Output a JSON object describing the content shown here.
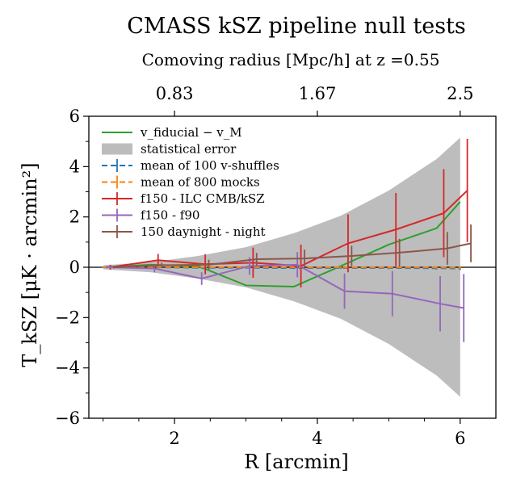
{
  "chart_data": {
    "type": "line",
    "title": "CMASS kSZ pipeline null tests",
    "top_axis": {
      "label": "Comoving radius [Mpc/h] at z =0.55",
      "ticks": [
        {
          "r": 2,
          "label": "0.83"
        },
        {
          "r": 4,
          "label": "1.67"
        },
        {
          "r": 6,
          "label": "2.5"
        }
      ]
    },
    "xlabel": "R [arcmin]",
    "ylabel": "T_kSZ [μK · arcmin²]",
    "xlim": [
      0.8,
      6.5
    ],
    "ylim": [
      -6,
      6
    ],
    "xticks": [
      2,
      4,
      6
    ],
    "yticks": [
      -6,
      -4,
      -2,
      0,
      2,
      4,
      6
    ],
    "ytick_labels": [
      "−6",
      "−4",
      "−2",
      "0",
      "2",
      "4",
      "6"
    ],
    "xtick_labels": [
      "2",
      "4",
      "6"
    ],
    "zero_line": true,
    "grid": false,
    "legend_position": "top-left",
    "statistical_error": {
      "name": "statistical error",
      "color": "#bdbdbd",
      "x": [
        1.0,
        1.67,
        2.33,
        3.0,
        3.67,
        4.33,
        5.0,
        5.67,
        6.0
      ],
      "upper": [
        0.08,
        0.2,
        0.45,
        0.8,
        1.35,
        2.05,
        3.05,
        4.3,
        5.15
      ],
      "lower": [
        -0.08,
        -0.2,
        -0.45,
        -0.8,
        -1.35,
        -2.05,
        -3.05,
        -4.3,
        -5.15
      ]
    },
    "series": [
      {
        "name": "v_fiducial − v_M",
        "color": "#2ca02c",
        "style": "solid",
        "errorbars": false,
        "x": [
          1.0,
          1.67,
          2.33,
          3.0,
          3.67,
          4.33,
          5.0,
          5.67,
          6.0
        ],
        "y": [
          0.0,
          0.1,
          0.05,
          -0.72,
          -0.77,
          0.05,
          0.9,
          1.55,
          2.6
        ]
      },
      {
        "name": "mean of 100 v-shuffles",
        "color": "#1f77b4",
        "style": "dashed",
        "errorbars": true,
        "x": [
          1.0,
          1.67,
          2.33,
          3.0,
          3.67,
          4.33,
          5.0,
          5.67,
          6.0
        ],
        "y": [
          0.0,
          0.0,
          -0.02,
          -0.02,
          -0.03,
          -0.03,
          -0.03,
          -0.04,
          -0.05
        ],
        "err": [
          0.02,
          0.02,
          0.03,
          0.03,
          0.04,
          0.04,
          0.05,
          0.05,
          0.06
        ]
      },
      {
        "name": "mean of 800 mocks",
        "color": "#ff7f0e",
        "style": "dashed",
        "errorbars": true,
        "x": [
          1.0,
          1.67,
          2.33,
          3.0,
          3.67,
          4.33,
          5.0,
          5.67,
          6.0
        ],
        "y": [
          0.0,
          0.01,
          0.0,
          0.0,
          0.0,
          -0.01,
          -0.01,
          -0.01,
          -0.02
        ],
        "err": [
          0.02,
          0.02,
          0.03,
          0.03,
          0.04,
          0.04,
          0.05,
          0.05,
          0.06
        ]
      },
      {
        "name": "f150 - ILC CMB/kSZ",
        "color": "#d62728",
        "style": "solid",
        "errorbars": true,
        "x": [
          1.1,
          1.77,
          2.43,
          3.1,
          3.77,
          4.43,
          5.1,
          5.77,
          6.1
        ],
        "y": [
          0.0,
          0.28,
          0.12,
          0.18,
          0.05,
          0.95,
          1.5,
          2.15,
          3.05
        ],
        "err": [
          0.1,
          0.25,
          0.4,
          0.6,
          0.85,
          1.15,
          1.45,
          1.75,
          2.05
        ]
      },
      {
        "name": "f150 - f90",
        "color": "#9467bd",
        "style": "solid",
        "errorbars": true,
        "x": [
          1.05,
          1.72,
          2.38,
          3.05,
          3.72,
          4.38,
          5.05,
          5.72,
          6.05
        ],
        "y": [
          0.0,
          -0.05,
          -0.45,
          0.05,
          0.1,
          -0.95,
          -1.05,
          -1.45,
          -1.62
        ],
        "err": [
          0.05,
          0.15,
          0.25,
          0.35,
          0.5,
          0.7,
          0.9,
          1.1,
          1.35
        ]
      },
      {
        "name": "150 daynight - night",
        "color": "#8c564b",
        "style": "solid",
        "errorbars": true,
        "x": [
          1.15,
          1.82,
          2.48,
          3.15,
          3.82,
          4.48,
          5.15,
          5.82,
          6.15
        ],
        "y": [
          0.0,
          0.08,
          0.1,
          0.32,
          0.35,
          0.45,
          0.58,
          0.75,
          0.95
        ],
        "err": [
          0.05,
          0.1,
          0.2,
          0.25,
          0.35,
          0.4,
          0.55,
          0.65,
          0.75
        ]
      }
    ]
  }
}
